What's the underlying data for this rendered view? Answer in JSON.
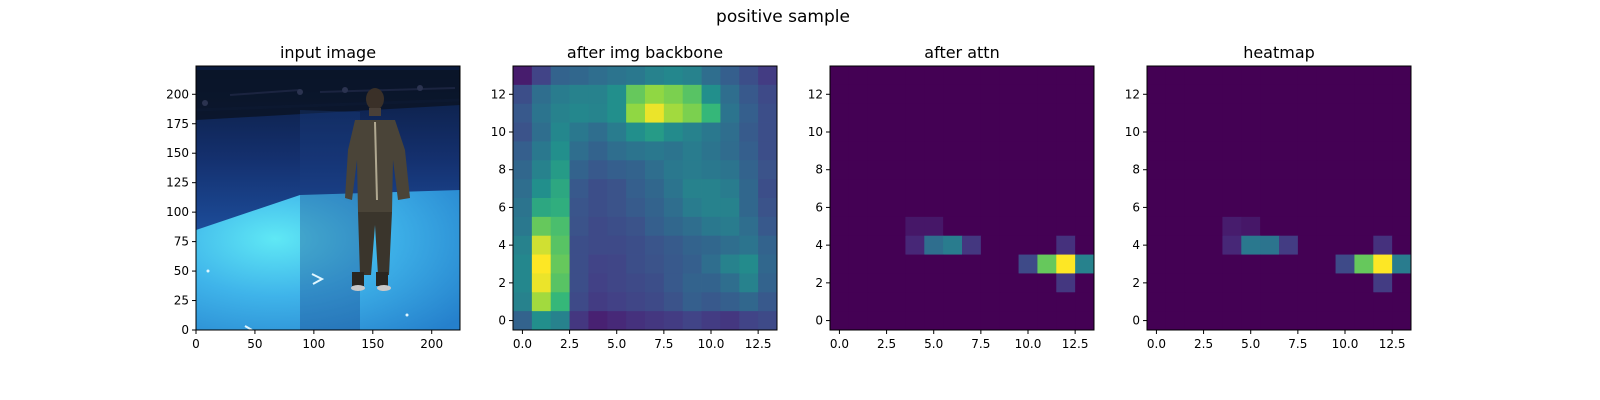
{
  "figure": {
    "suptitle": "positive sample"
  },
  "chart_data": [
    {
      "type": "image",
      "title": "input image",
      "xticks": [
        "0",
        "50",
        "100",
        "150",
        "200"
      ],
      "yticks": [
        "0",
        "25",
        "50",
        "75",
        "100",
        "125",
        "150",
        "175",
        "200"
      ],
      "xlim": [
        0,
        224
      ],
      "ylim": [
        224,
        0
      ],
      "content": "photo of a standing person in a blue motion-capture room"
    },
    {
      "type": "heatmap",
      "title": "after img backbone",
      "grid_size": [
        14,
        14
      ],
      "xticks": [
        "0.0",
        "2.5",
        "5.0",
        "7.5",
        "10.0",
        "12.5"
      ],
      "yticks": [
        "0",
        "2",
        "4",
        "6",
        "8",
        "10",
        "12"
      ],
      "xlim": [
        -0.5,
        13.5
      ],
      "ylim": [
        13.5,
        -0.5
      ],
      "colormap": "viridis",
      "values": [
        [
          0.1,
          0.25,
          0.4,
          0.42,
          0.45,
          0.48,
          0.5,
          0.55,
          0.58,
          0.55,
          0.45,
          0.38,
          0.3,
          0.22
        ],
        [
          0.3,
          0.45,
          0.52,
          0.55,
          0.55,
          0.62,
          0.82,
          0.88,
          0.85,
          0.8,
          0.62,
          0.45,
          0.35,
          0.28
        ],
        [
          0.35,
          0.48,
          0.55,
          0.58,
          0.56,
          0.62,
          0.88,
          0.98,
          0.9,
          0.85,
          0.75,
          0.48,
          0.38,
          0.3
        ],
        [
          0.32,
          0.45,
          0.58,
          0.5,
          0.45,
          0.52,
          0.62,
          0.66,
          0.6,
          0.55,
          0.5,
          0.45,
          0.36,
          0.3
        ],
        [
          0.38,
          0.5,
          0.62,
          0.45,
          0.4,
          0.45,
          0.48,
          0.5,
          0.48,
          0.52,
          0.48,
          0.44,
          0.38,
          0.3
        ],
        [
          0.42,
          0.55,
          0.66,
          0.4,
          0.35,
          0.38,
          0.4,
          0.45,
          0.5,
          0.52,
          0.5,
          0.48,
          0.4,
          0.32
        ],
        [
          0.45,
          0.62,
          0.7,
          0.35,
          0.3,
          0.32,
          0.38,
          0.42,
          0.48,
          0.55,
          0.55,
          0.52,
          0.42,
          0.3
        ],
        [
          0.48,
          0.7,
          0.72,
          0.33,
          0.3,
          0.32,
          0.36,
          0.4,
          0.45,
          0.52,
          0.55,
          0.55,
          0.42,
          0.32
        ],
        [
          0.5,
          0.82,
          0.78,
          0.32,
          0.28,
          0.3,
          0.32,
          0.38,
          0.42,
          0.45,
          0.5,
          0.52,
          0.45,
          0.35
        ],
        [
          0.55,
          0.95,
          0.8,
          0.3,
          0.28,
          0.28,
          0.3,
          0.33,
          0.36,
          0.4,
          0.42,
          0.45,
          0.48,
          0.4
        ],
        [
          0.58,
          1.0,
          0.82,
          0.3,
          0.25,
          0.26,
          0.3,
          0.32,
          0.35,
          0.38,
          0.45,
          0.55,
          0.6,
          0.42
        ],
        [
          0.58,
          0.98,
          0.8,
          0.3,
          0.24,
          0.26,
          0.28,
          0.3,
          0.35,
          0.4,
          0.4,
          0.45,
          0.55,
          0.4
        ],
        [
          0.55,
          0.9,
          0.75,
          0.28,
          0.22,
          0.24,
          0.26,
          0.28,
          0.32,
          0.38,
          0.35,
          0.38,
          0.42,
          0.35
        ],
        [
          0.4,
          0.62,
          0.55,
          0.2,
          0.12,
          0.15,
          0.18,
          0.2,
          0.22,
          0.25,
          0.22,
          0.2,
          0.25,
          0.28
        ]
      ]
    },
    {
      "type": "heatmap",
      "title": "after attn",
      "grid_size": [
        14,
        14
      ],
      "xticks": [
        "0.0",
        "2.5",
        "5.0",
        "7.5",
        "10.0",
        "12.5"
      ],
      "yticks": [
        "0",
        "2",
        "4",
        "6",
        "8",
        "10",
        "12"
      ],
      "xlim": [
        -0.5,
        13.5
      ],
      "ylim": [
        13.5,
        -0.5
      ],
      "colormap": "viridis",
      "background": 0,
      "cells": [
        {
          "r": 8,
          "c": 4,
          "v": 0.08
        },
        {
          "r": 8,
          "c": 5,
          "v": 0.08
        },
        {
          "r": 9,
          "c": 4,
          "v": 0.14
        },
        {
          "r": 9,
          "c": 5,
          "v": 0.45
        },
        {
          "r": 9,
          "c": 6,
          "v": 0.52
        },
        {
          "r": 9,
          "c": 7,
          "v": 0.2
        },
        {
          "r": 10,
          "c": 10,
          "v": 0.28
        },
        {
          "r": 10,
          "c": 11,
          "v": 0.82
        },
        {
          "r": 10,
          "c": 12,
          "v": 1.0
        },
        {
          "r": 10,
          "c": 13,
          "v": 0.55
        },
        {
          "r": 9,
          "c": 12,
          "v": 0.18
        },
        {
          "r": 11,
          "c": 12,
          "v": 0.2
        }
      ]
    },
    {
      "type": "heatmap",
      "title": "heatmap",
      "grid_size": [
        14,
        14
      ],
      "xticks": [
        "0.0",
        "2.5",
        "5.0",
        "7.5",
        "10.0",
        "12.5"
      ],
      "yticks": [
        "0",
        "2",
        "4",
        "6",
        "8",
        "10",
        "12"
      ],
      "xlim": [
        -0.5,
        13.5
      ],
      "ylim": [
        13.5,
        -0.5
      ],
      "colormap": "viridis",
      "background": 0,
      "cells": [
        {
          "r": 8,
          "c": 4,
          "v": 0.1
        },
        {
          "r": 8,
          "c": 5,
          "v": 0.08
        },
        {
          "r": 9,
          "c": 4,
          "v": 0.14
        },
        {
          "r": 9,
          "c": 5,
          "v": 0.5
        },
        {
          "r": 9,
          "c": 6,
          "v": 0.48
        },
        {
          "r": 9,
          "c": 7,
          "v": 0.22
        },
        {
          "r": 10,
          "c": 10,
          "v": 0.28
        },
        {
          "r": 10,
          "c": 11,
          "v": 0.82
        },
        {
          "r": 10,
          "c": 12,
          "v": 1.0
        },
        {
          "r": 10,
          "c": 13,
          "v": 0.52
        },
        {
          "r": 9,
          "c": 12,
          "v": 0.18
        },
        {
          "r": 11,
          "c": 12,
          "v": 0.22
        }
      ]
    }
  ]
}
